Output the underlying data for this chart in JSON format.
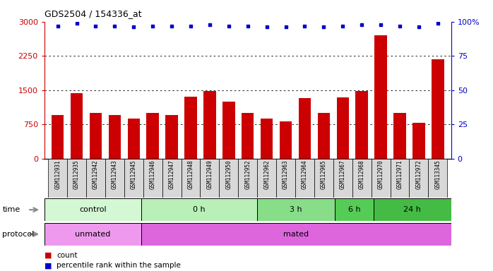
{
  "title": "GDS2504 / 154336_at",
  "samples": [
    "GSM112931",
    "GSM112935",
    "GSM112942",
    "GSM112943",
    "GSM112945",
    "GSM112946",
    "GSM112947",
    "GSM112948",
    "GSM112949",
    "GSM112950",
    "GSM112952",
    "GSM112962",
    "GSM112963",
    "GSM112964",
    "GSM112965",
    "GSM112967",
    "GSM112968",
    "GSM112970",
    "GSM112971",
    "GSM112972",
    "GSM113345"
  ],
  "counts": [
    950,
    1430,
    1000,
    950,
    880,
    1000,
    950,
    1350,
    1480,
    1250,
    1000,
    870,
    820,
    1320,
    1000,
    1340,
    1480,
    2700,
    1000,
    780,
    2180
  ],
  "percentile_ranks": [
    97,
    99,
    97,
    97,
    96,
    97,
    97,
    97,
    98,
    97,
    97,
    96,
    96,
    97,
    96,
    97,
    98,
    98,
    97,
    96,
    99
  ],
  "bar_color": "#cc0000",
  "dot_color": "#0000cc",
  "ylim_left": [
    0,
    3000
  ],
  "ylim_right": [
    0,
    100
  ],
  "yticks_left": [
    0,
    750,
    1500,
    2250,
    3000
  ],
  "yticks_right": [
    0,
    25,
    50,
    75,
    100
  ],
  "ytick_labels_right": [
    "0",
    "25",
    "50",
    "75",
    "100%"
  ],
  "grid_lines": [
    750,
    1500,
    2250
  ],
  "time_groups": [
    {
      "label": "control",
      "start": 0,
      "end": 5,
      "color": "#d4f7d4"
    },
    {
      "label": "0 h",
      "start": 5,
      "end": 11,
      "color": "#b8f0b8"
    },
    {
      "label": "3 h",
      "start": 11,
      "end": 15,
      "color": "#88dd88"
    },
    {
      "label": "6 h",
      "start": 15,
      "end": 17,
      "color": "#55cc55"
    },
    {
      "label": "24 h",
      "start": 17,
      "end": 21,
      "color": "#44bb44"
    }
  ],
  "protocol_groups": [
    {
      "label": "unmated",
      "start": 0,
      "end": 5,
      "color": "#ee99ee"
    },
    {
      "label": "mated",
      "start": 5,
      "end": 21,
      "color": "#dd66dd"
    }
  ],
  "time_label": "time",
  "protocol_label": "protocol",
  "bg_color": "#ffffff",
  "plot_bg_color": "#ffffff",
  "axis_color_left": "#cc0000",
  "axis_color_right": "#0000cc",
  "xtick_bg": "#d8d8d8"
}
